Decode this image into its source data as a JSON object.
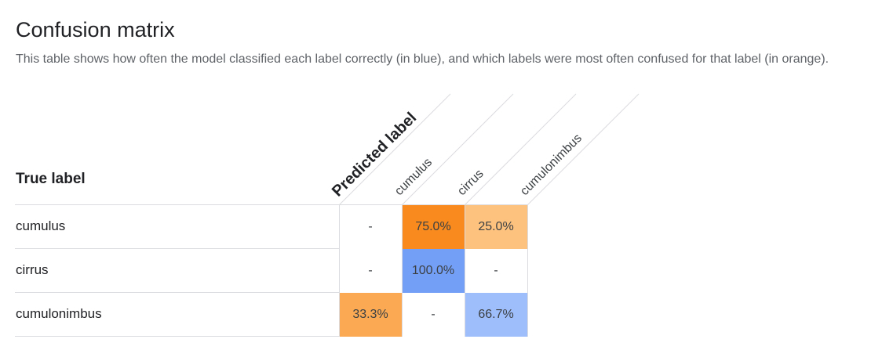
{
  "page": {
    "title": "Confusion matrix",
    "description": "This table shows how often the model classified each label correctly (in blue), and which labels were most often confused for that label (in orange)."
  },
  "matrix": {
    "predicted_axis_label": "Predicted label",
    "true_axis_label": "True label",
    "columns": [
      "cumulus",
      "cirrus",
      "cumulonimbus"
    ],
    "rows": [
      {
        "label": "cumulus",
        "cells": [
          "-",
          "75.0%",
          "25.0%"
        ]
      },
      {
        "label": "cirrus",
        "cells": [
          "-",
          "100.0%",
          "-"
        ]
      },
      {
        "label": "cumulonimbus",
        "cells": [
          "33.3%",
          "-",
          "66.7%"
        ]
      }
    ],
    "cell_colors": [
      [
        "#ffffff",
        "#f98b1e",
        "#fec27f"
      ],
      [
        "#ffffff",
        "#739ff7",
        "#ffffff"
      ],
      [
        "#fbaa53",
        "#ffffff",
        "#9dbdfb"
      ]
    ],
    "colors": {
      "correct": "#739ff7",
      "confused": "#f98b1e"
    }
  }
}
